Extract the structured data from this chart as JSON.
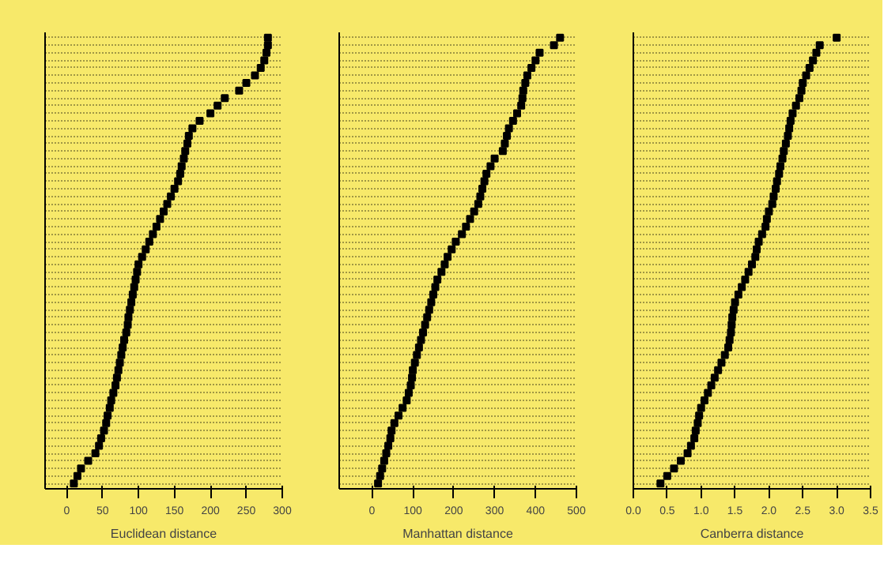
{
  "chart_data": [
    {
      "type": "scatter",
      "orientation": "horizontal",
      "xlabel": "Euclidean distance",
      "xlim": [
        -30,
        300
      ],
      "xticks": [
        0,
        50,
        100,
        150,
        200,
        250,
        300
      ],
      "marker": "square",
      "line_style": "dotted",
      "tick_labels": "x",
      "grid": "y",
      "categories": [
        null,
        null,
        null,
        null,
        null,
        null,
        null,
        null,
        null,
        null,
        null,
        null,
        null,
        null,
        null,
        null,
        null,
        null,
        null,
        null,
        null,
        null,
        null,
        null,
        null,
        null,
        null,
        null,
        null,
        null,
        null,
        null,
        null,
        null,
        null,
        null,
        null,
        null,
        null,
        null,
        null,
        null,
        null,
        null,
        null,
        null,
        null,
        null,
        null,
        null,
        null,
        null,
        null,
        null,
        null,
        null,
        null,
        null,
        null,
        null
      ],
      "series": [
        {
          "color": "#000000",
          "values": [
            280,
            280,
            278,
            275,
            270,
            262,
            250,
            240,
            220,
            210,
            200,
            185,
            175,
            170,
            168,
            165,
            163,
            160,
            158,
            155,
            150,
            145,
            140,
            135,
            130,
            125,
            120,
            115,
            110,
            105,
            100,
            98,
            96,
            94,
            92,
            90,
            88,
            86,
            85,
            83,
            80,
            78,
            76,
            74,
            72,
            70,
            68,
            65,
            62,
            60,
            57,
            55,
            52,
            48,
            45,
            40,
            30,
            20,
            15,
            10
          ]
        }
      ]
    },
    {
      "type": "scatter",
      "orientation": "horizontal",
      "xlabel": "Manhattan distance",
      "xlim": [
        -80,
        500
      ],
      "xticks": [
        0,
        100,
        200,
        300,
        400,
        500
      ],
      "marker": "square",
      "line_style": "dotted",
      "tick_labels": "x",
      "grid": "y",
      "categories": [
        null,
        null,
        null,
        null,
        null,
        null,
        null,
        null,
        null,
        null,
        null,
        null,
        null,
        null,
        null,
        null,
        null,
        null,
        null,
        null,
        null,
        null,
        null,
        null,
        null,
        null,
        null,
        null,
        null,
        null,
        null,
        null,
        null,
        null,
        null,
        null,
        null,
        null,
        null,
        null,
        null,
        null,
        null,
        null,
        null,
        null,
        null,
        null,
        null,
        null,
        null,
        null,
        null,
        null,
        null,
        null,
        null,
        null,
        null,
        null
      ],
      "series": [
        {
          "color": "#000000",
          "values": [
            460,
            445,
            410,
            400,
            390,
            380,
            375,
            370,
            368,
            365,
            355,
            345,
            335,
            330,
            325,
            320,
            300,
            290,
            280,
            275,
            270,
            265,
            260,
            250,
            240,
            230,
            220,
            205,
            195,
            185,
            178,
            170,
            160,
            155,
            150,
            145,
            140,
            135,
            130,
            125,
            120,
            115,
            110,
            105,
            100,
            98,
            95,
            90,
            85,
            75,
            65,
            55,
            48,
            45,
            40,
            35,
            30,
            25,
            20,
            15
          ]
        }
      ]
    },
    {
      "type": "scatter",
      "orientation": "horizontal",
      "xlabel": "Canberra distance",
      "xlim": [
        0,
        3.5
      ],
      "xticks": [
        {
          "value": 0,
          "label": "0.0"
        },
        0.5,
        {
          "value": 1,
          "label": "1.0"
        },
        1.5,
        {
          "value": 2,
          "label": "2.0"
        },
        2.5,
        {
          "value": 3,
          "label": "3.0"
        },
        3.5
      ],
      "marker": "square",
      "line_style": "dotted",
      "tick_labels": "x",
      "grid": "y",
      "categories": [
        null,
        null,
        null,
        null,
        null,
        null,
        null,
        null,
        null,
        null,
        null,
        null,
        null,
        null,
        null,
        null,
        null,
        null,
        null,
        null,
        null,
        null,
        null,
        null,
        null,
        null,
        null,
        null,
        null,
        null,
        null,
        null,
        null,
        null,
        null,
        null,
        null,
        null,
        null,
        null,
        null,
        null,
        null,
        null,
        null,
        null,
        null,
        null,
        null,
        null,
        null,
        null,
        null,
        null,
        null,
        null,
        null,
        null,
        null,
        null
      ],
      "series": [
        {
          "color": "#000000",
          "values": [
            3.0,
            2.75,
            2.7,
            2.65,
            2.6,
            2.55,
            2.5,
            2.48,
            2.45,
            2.4,
            2.35,
            2.32,
            2.3,
            2.28,
            2.25,
            2.22,
            2.2,
            2.17,
            2.15,
            2.12,
            2.1,
            2.07,
            2.05,
            2.0,
            1.97,
            1.95,
            1.9,
            1.85,
            1.82,
            1.8,
            1.75,
            1.7,
            1.65,
            1.6,
            1.55,
            1.5,
            1.48,
            1.46,
            1.45,
            1.44,
            1.42,
            1.4,
            1.35,
            1.3,
            1.25,
            1.2,
            1.15,
            1.1,
            1.05,
            1.0,
            0.97,
            0.95,
            0.92,
            0.9,
            0.85,
            0.8,
            0.7,
            0.6,
            0.5,
            0.4
          ]
        }
      ]
    }
  ]
}
